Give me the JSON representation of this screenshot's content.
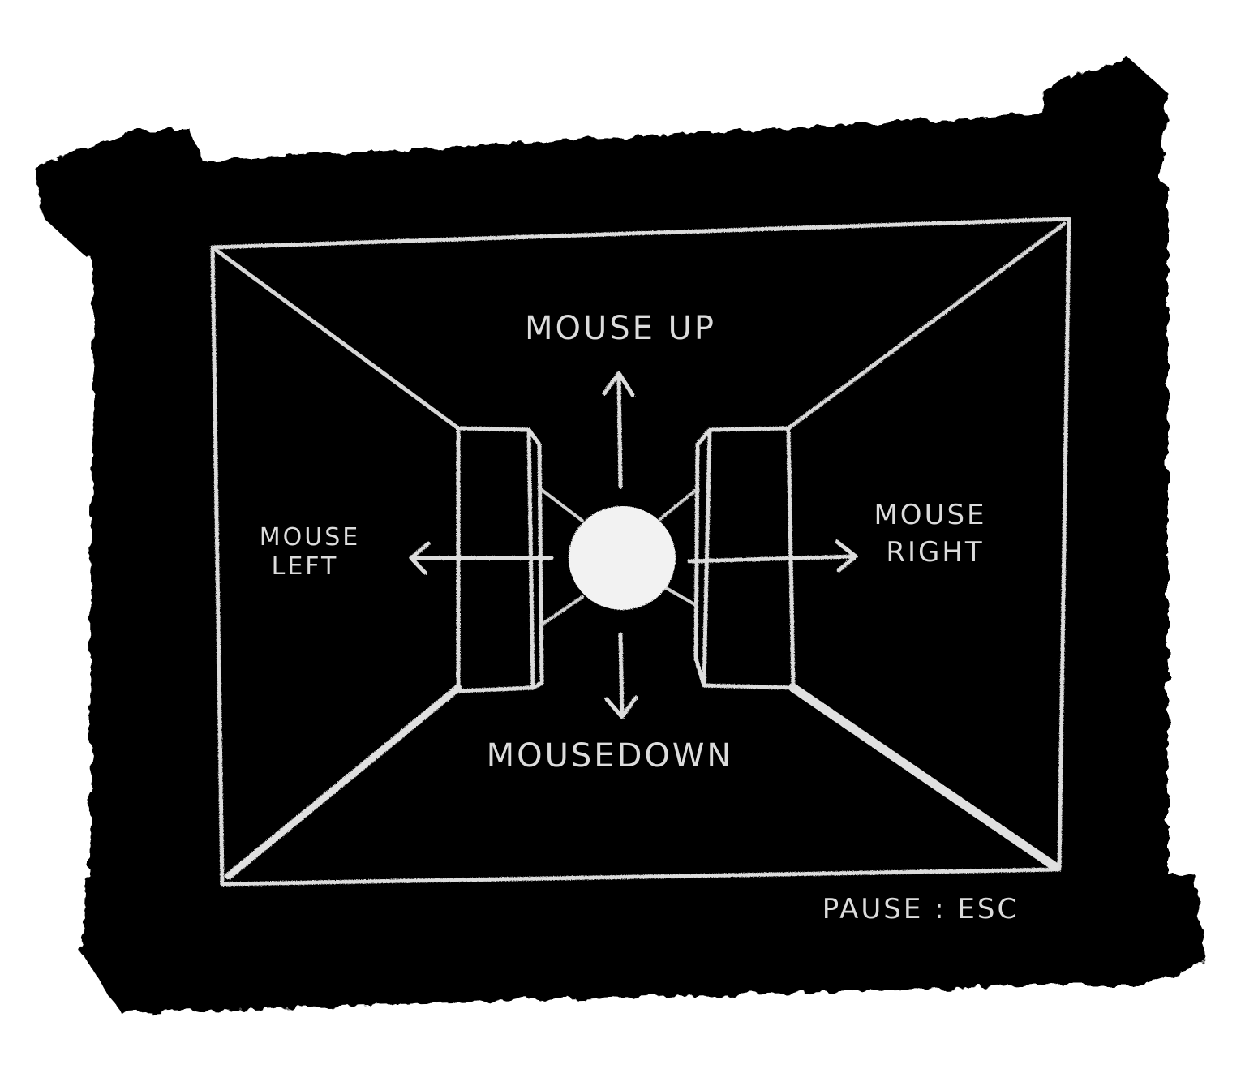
{
  "game": {
    "controls": {
      "up_label": "MOUSE UP",
      "down_label": "MOUSEDOWN",
      "left_label_line1": "MOUSE",
      "left_label_line2": "LEFT",
      "right_label_line1": "MOUSE",
      "right_label_line2": "RIGHT"
    },
    "pause_hint": "PAUSE : ESC"
  },
  "colors": {
    "board": "#030303",
    "chalk": "#dcdcdc",
    "ball": "#f2f2f2",
    "paper": "#ffffff"
  }
}
